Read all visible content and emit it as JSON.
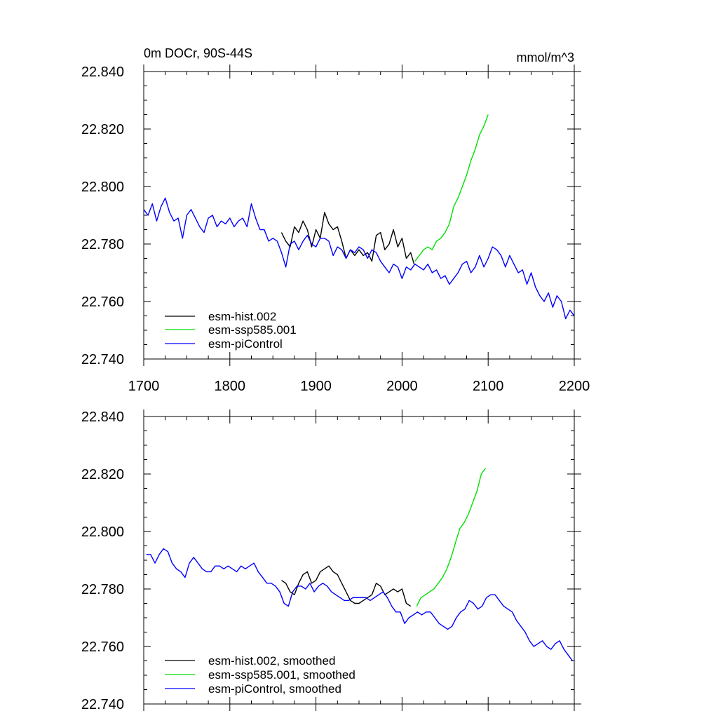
{
  "chart_data": [
    {
      "type": "line",
      "title_left": "0m DOCr, 90S-44S",
      "title_right": "mmol/m^3",
      "xlabel": "",
      "ylabel": "",
      "xlim": [
        1700,
        2200
      ],
      "ylim": [
        22.74,
        22.84
      ],
      "xticks": [
        1700,
        1800,
        1900,
        2000,
        2100,
        2200
      ],
      "xtick_labels": [
        "1700",
        "1800",
        "1900",
        "2000",
        "2100",
        "2200"
      ],
      "yticks": [
        22.74,
        22.76,
        22.78,
        22.8,
        22.82,
        22.84
      ],
      "ytick_labels": [
        "22.740",
        "22.760",
        "22.780",
        "22.800",
        "22.820",
        "22.840"
      ],
      "grid": false,
      "legend_position": "bottom-left",
      "series": [
        {
          "name": "esm-hist.002",
          "color": "#000000",
          "x": [
            1860,
            1865,
            1870,
            1875,
            1880,
            1885,
            1890,
            1895,
            1900,
            1905,
            1910,
            1915,
            1920,
            1925,
            1930,
            1935,
            1940,
            1945,
            1950,
            1955,
            1960,
            1965,
            1970,
            1975,
            1980,
            1985,
            1990,
            1995,
            2000,
            2005,
            2010,
            2014
          ],
          "y": [
            22.784,
            22.781,
            22.779,
            22.786,
            22.784,
            22.788,
            22.785,
            22.779,
            22.785,
            22.782,
            22.791,
            22.787,
            22.785,
            22.786,
            22.781,
            22.775,
            22.778,
            22.776,
            22.778,
            22.776,
            22.777,
            22.774,
            22.783,
            22.784,
            22.778,
            22.78,
            22.785,
            22.779,
            22.782,
            22.775,
            22.777,
            22.773
          ]
        },
        {
          "name": "esm-ssp585.001",
          "color": "#00e000",
          "x": [
            2015,
            2020,
            2025,
            2030,
            2035,
            2040,
            2045,
            2050,
            2055,
            2060,
            2065,
            2070,
            2075,
            2080,
            2085,
            2090,
            2095,
            2100
          ],
          "y": [
            22.774,
            22.776,
            22.778,
            22.779,
            22.778,
            22.781,
            22.782,
            22.784,
            22.787,
            22.793,
            22.796,
            22.8,
            22.804,
            22.809,
            22.813,
            22.818,
            22.821,
            22.825
          ]
        },
        {
          "name": "esm-piControl",
          "color": "#0000ff",
          "x": [
            1700,
            1705,
            1710,
            1715,
            1720,
            1725,
            1730,
            1735,
            1740,
            1745,
            1750,
            1755,
            1760,
            1765,
            1770,
            1775,
            1780,
            1785,
            1790,
            1795,
            1800,
            1805,
            1810,
            1815,
            1820,
            1825,
            1830,
            1835,
            1840,
            1845,
            1850,
            1855,
            1860,
            1865,
            1870,
            1875,
            1880,
            1885,
            1890,
            1895,
            1900,
            1905,
            1910,
            1915,
            1920,
            1925,
            1930,
            1935,
            1940,
            1945,
            1950,
            1955,
            1960,
            1965,
            1970,
            1975,
            1980,
            1985,
            1990,
            1995,
            2000,
            2005,
            2010,
            2015,
            2020,
            2025,
            2030,
            2035,
            2040,
            2045,
            2050,
            2055,
            2060,
            2065,
            2070,
            2075,
            2080,
            2085,
            2090,
            2095,
            2100,
            2105,
            2110,
            2115,
            2120,
            2125,
            2130,
            2135,
            2140,
            2145,
            2150,
            2155,
            2160,
            2165,
            2170,
            2175,
            2180,
            2185,
            2190,
            2195,
            2200
          ],
          "y": [
            22.792,
            22.79,
            22.794,
            22.788,
            22.793,
            22.796,
            22.791,
            22.788,
            22.789,
            22.782,
            22.79,
            22.792,
            22.789,
            22.786,
            22.784,
            22.789,
            22.79,
            22.786,
            22.788,
            22.787,
            22.789,
            22.786,
            22.788,
            22.789,
            22.786,
            22.794,
            22.789,
            22.785,
            22.785,
            22.781,
            22.782,
            22.781,
            22.777,
            22.772,
            22.78,
            22.781,
            22.778,
            22.781,
            22.783,
            22.78,
            22.779,
            22.782,
            22.782,
            22.781,
            22.776,
            22.779,
            22.778,
            22.775,
            22.778,
            22.777,
            22.779,
            22.778,
            22.775,
            22.778,
            22.777,
            22.774,
            22.772,
            22.77,
            22.773,
            22.772,
            22.768,
            22.772,
            22.771,
            22.773,
            22.772,
            22.771,
            22.773,
            22.77,
            22.771,
            22.768,
            22.769,
            22.766,
            22.768,
            22.77,
            22.773,
            22.774,
            22.77,
            22.772,
            22.776,
            22.772,
            22.775,
            22.779,
            22.778,
            22.776,
            22.772,
            22.776,
            22.773,
            22.77,
            22.771,
            22.766,
            22.77,
            22.765,
            22.762,
            22.76,
            22.763,
            22.758,
            22.762,
            22.76,
            22.754,
            22.757,
            22.755
          ]
        }
      ]
    },
    {
      "type": "line",
      "title_left": "",
      "title_right": "",
      "xlabel": "",
      "ylabel": "",
      "xlim": [
        1700,
        2200
      ],
      "ylim": [
        22.74,
        22.84
      ],
      "xticks": [
        1700,
        1800,
        1900,
        2000,
        2100,
        2200
      ],
      "yticks": [
        22.74,
        22.76,
        22.78,
        22.8,
        22.82,
        22.84
      ],
      "ytick_labels": [
        "22.740",
        "22.760",
        "22.780",
        "22.800",
        "22.820",
        "22.840"
      ],
      "grid": false,
      "legend_position": "bottom-left",
      "series": [
        {
          "name": "esm-hist.002, smoothed",
          "color": "#000000",
          "x": [
            1860,
            1865,
            1870,
            1875,
            1880,
            1885,
            1890,
            1895,
            1900,
            1905,
            1910,
            1915,
            1920,
            1925,
            1930,
            1935,
            1940,
            1945,
            1950,
            1955,
            1960,
            1965,
            1970,
            1975,
            1980,
            1985,
            1990,
            1995,
            2000,
            2005,
            2010
          ],
          "y": [
            22.783,
            22.782,
            22.779,
            22.778,
            22.782,
            22.785,
            22.786,
            22.782,
            22.783,
            22.786,
            22.787,
            22.788,
            22.786,
            22.785,
            22.782,
            22.779,
            22.776,
            22.775,
            22.775,
            22.776,
            22.777,
            22.778,
            22.782,
            22.781,
            22.778,
            22.779,
            22.78,
            22.779,
            22.78,
            22.775,
            22.774
          ]
        },
        {
          "name": "esm-ssp585.001, smoothed",
          "color": "#00e000",
          "x": [
            2017,
            2022,
            2027,
            2032,
            2037,
            2042,
            2047,
            2052,
            2057,
            2062,
            2067,
            2072,
            2077,
            2082,
            2087,
            2092,
            2097
          ],
          "y": [
            22.774,
            22.777,
            22.778,
            22.779,
            22.78,
            22.782,
            22.784,
            22.787,
            22.791,
            22.796,
            22.801,
            22.803,
            22.806,
            22.81,
            22.814,
            22.82,
            22.822
          ]
        },
        {
          "name": "esm-piControl, smoothed",
          "color": "#0000ff",
          "x": [
            1703,
            1708,
            1713,
            1718,
            1723,
            1728,
            1733,
            1738,
            1743,
            1748,
            1753,
            1758,
            1763,
            1768,
            1773,
            1778,
            1783,
            1788,
            1793,
            1798,
            1803,
            1808,
            1813,
            1818,
            1823,
            1828,
            1833,
            1838,
            1843,
            1848,
            1853,
            1858,
            1863,
            1868,
            1873,
            1878,
            1883,
            1888,
            1893,
            1898,
            1903,
            1908,
            1913,
            1918,
            1923,
            1928,
            1933,
            1938,
            1943,
            1948,
            1953,
            1958,
            1963,
            1968,
            1973,
            1978,
            1983,
            1988,
            1993,
            1998,
            2003,
            2008,
            2013,
            2018,
            2023,
            2028,
            2033,
            2038,
            2043,
            2048,
            2053,
            2058,
            2063,
            2068,
            2073,
            2078,
            2083,
            2088,
            2093,
            2098,
            2103,
            2108,
            2113,
            2118,
            2123,
            2128,
            2133,
            2138,
            2143,
            2148,
            2153,
            2158,
            2163,
            2168,
            2173,
            2178,
            2183,
            2188,
            2193,
            2198
          ],
          "y": [
            22.792,
            22.792,
            22.789,
            22.792,
            22.794,
            22.793,
            22.789,
            22.787,
            22.786,
            22.784,
            22.789,
            22.791,
            22.789,
            22.787,
            22.786,
            22.786,
            22.788,
            22.788,
            22.787,
            22.788,
            22.787,
            22.786,
            22.788,
            22.787,
            22.788,
            22.789,
            22.786,
            22.784,
            22.782,
            22.782,
            22.781,
            22.779,
            22.775,
            22.774,
            22.779,
            22.781,
            22.781,
            22.78,
            22.782,
            22.779,
            22.781,
            22.782,
            22.781,
            22.779,
            22.778,
            22.777,
            22.776,
            22.776,
            22.777,
            22.777,
            22.777,
            22.777,
            22.776,
            22.777,
            22.778,
            22.779,
            22.777,
            22.774,
            22.772,
            22.772,
            22.768,
            22.77,
            22.771,
            22.772,
            22.771,
            22.772,
            22.772,
            22.77,
            22.768,
            22.767,
            22.766,
            22.767,
            22.77,
            22.772,
            22.773,
            22.776,
            22.775,
            22.773,
            22.774,
            22.777,
            22.778,
            22.778,
            22.776,
            22.774,
            22.773,
            22.772,
            22.769,
            22.767,
            22.765,
            22.762,
            22.76,
            22.761,
            22.762,
            22.76,
            22.759,
            22.761,
            22.762,
            22.759,
            22.757,
            22.755
          ]
        }
      ]
    }
  ]
}
